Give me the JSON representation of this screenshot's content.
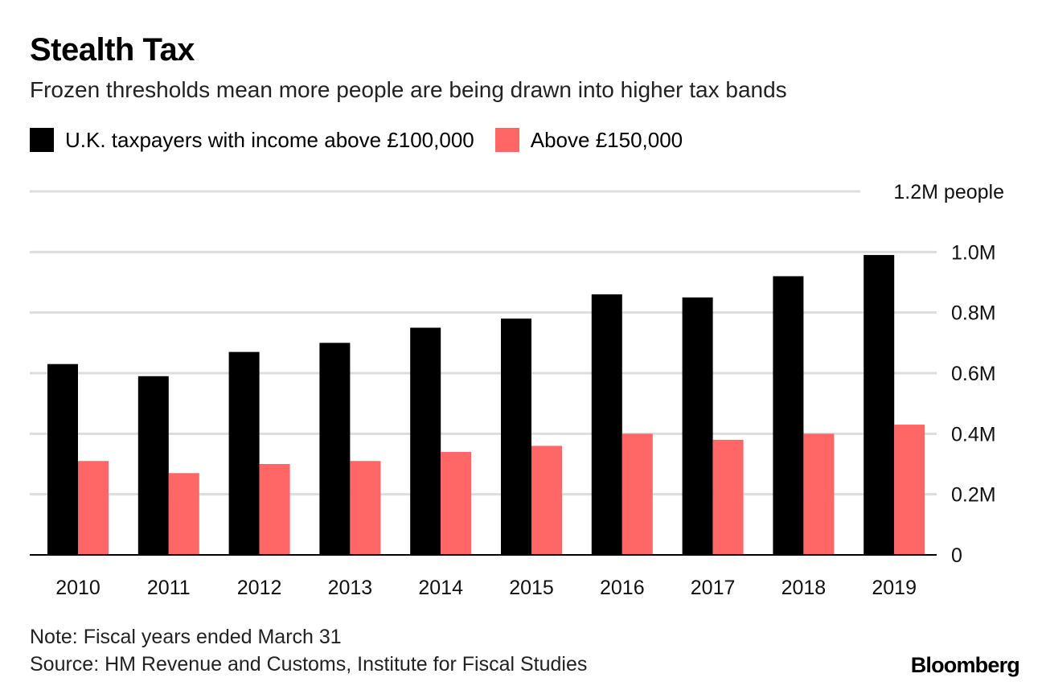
{
  "chart_data": {
    "type": "bar",
    "title": "Stealth Tax",
    "subtitle": "Frozen thresholds mean more people are being drawn into higher tax bands",
    "categories": [
      "2010",
      "2011",
      "2012",
      "2013",
      "2014",
      "2015",
      "2016",
      "2017",
      "2018",
      "2019"
    ],
    "series": [
      {
        "name": "U.K. taxpayers with income above £100,000",
        "color": "#000000",
        "values": [
          0.63,
          0.59,
          0.67,
          0.7,
          0.75,
          0.78,
          0.86,
          0.85,
          0.92,
          0.99
        ]
      },
      {
        "name": "Above £150,000",
        "color": "#ff6666",
        "values": [
          0.31,
          0.27,
          0.3,
          0.31,
          0.34,
          0.36,
          0.4,
          0.38,
          0.4,
          0.43
        ]
      }
    ],
    "ylim": [
      0,
      1.2
    ],
    "yticks": [
      0,
      0.2,
      0.4,
      0.6,
      0.8,
      1.0,
      1.2
    ],
    "ytick_labels": [
      "0",
      "0.2M",
      "0.4M",
      "0.6M",
      "0.8M",
      "1.0M",
      "1.2M people"
    ],
    "xlabel": "",
    "ylabel": "",
    "grid": true,
    "legend": "top-left",
    "note": "Note: Fiscal years ended March 31",
    "source": "Source: HM Revenue and Customs, Institute for Fiscal Studies"
  },
  "brand": "Bloomberg"
}
